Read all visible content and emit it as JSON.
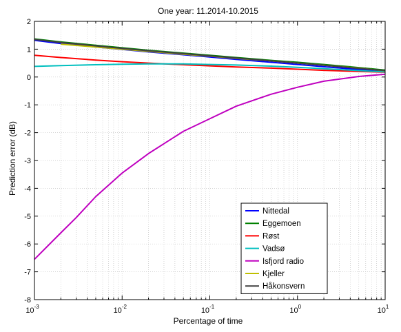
{
  "chart_data": {
    "type": "line",
    "title": "One year: 11.2014-10.2015",
    "xlabel": "Percentage of time",
    "ylabel": "Prediction error (dB)",
    "xscale": "log",
    "xlim": [
      0.001,
      10
    ],
    "ylim": [
      -8,
      2
    ],
    "grid": true,
    "legend_position": "bottom-right",
    "x_ticks": [
      {
        "value": 0.001,
        "base": "10",
        "exp": "-3"
      },
      {
        "value": 0.01,
        "base": "10",
        "exp": "-2"
      },
      {
        "value": 0.1,
        "base": "10",
        "exp": "-1"
      },
      {
        "value": 1,
        "base": "10",
        "exp": "0"
      },
      {
        "value": 10,
        "base": "10",
        "exp": "1"
      }
    ],
    "y_ticks": [
      -8,
      -7,
      -6,
      -5,
      -4,
      -3,
      -2,
      -1,
      0,
      1,
      2
    ],
    "series": [
      {
        "name": "Nittedal",
        "color": "#0000ff",
        "x": [
          0.001,
          0.002,
          0.005,
          0.01,
          0.02,
          0.05,
          0.1,
          0.2,
          0.5,
          1,
          2,
          5,
          10
        ],
        "y": [
          1.32,
          1.2,
          1.08,
          0.99,
          0.9,
          0.8,
          0.72,
          0.63,
          0.53,
          0.45,
          0.37,
          0.27,
          0.2
        ]
      },
      {
        "name": "Eggemoen",
        "color": "#008000",
        "x": [
          0.001,
          0.002,
          0.005,
          0.01,
          0.02,
          0.05,
          0.1,
          0.2,
          0.5,
          1,
          2,
          5,
          10
        ],
        "y": [
          1.37,
          1.26,
          1.14,
          1.05,
          0.96,
          0.86,
          0.78,
          0.7,
          0.6,
          0.53,
          0.45,
          0.34,
          0.25
        ]
      },
      {
        "name": "Røst",
        "color": "#ff0000",
        "x": [
          0.001,
          0.002,
          0.005,
          0.01,
          0.02,
          0.05,
          0.1,
          0.2,
          0.5,
          1,
          2,
          5,
          10
        ],
        "y": [
          0.78,
          0.7,
          0.61,
          0.55,
          0.5,
          0.44,
          0.4,
          0.36,
          0.32,
          0.28,
          0.24,
          0.2,
          0.17
        ]
      },
      {
        "name": "Vadsø",
        "color": "#00bfbf",
        "x": [
          0.001,
          0.002,
          0.005,
          0.01,
          0.02,
          0.05,
          0.1,
          0.2,
          0.5,
          1,
          2,
          5,
          10
        ],
        "y": [
          0.38,
          0.41,
          0.44,
          0.46,
          0.47,
          0.47,
          0.45,
          0.43,
          0.39,
          0.35,
          0.3,
          0.23,
          0.18
        ]
      },
      {
        "name": "Isfjord radio",
        "color": "#bf00bf",
        "x": [
          0.001,
          0.002,
          0.003,
          0.005,
          0.01,
          0.02,
          0.05,
          0.1,
          0.2,
          0.5,
          1,
          2,
          5,
          10
        ],
        "y": [
          -6.55,
          -5.6,
          -5.05,
          -4.3,
          -3.45,
          -2.75,
          -1.95,
          -1.5,
          -1.05,
          -0.62,
          -0.37,
          -0.15,
          0.02,
          0.1
        ]
      },
      {
        "name": "Kjeller",
        "color": "#bfbf00",
        "x": [
          0.002,
          0.005,
          0.01,
          0.02,
          0.05,
          0.1,
          0.2,
          0.5,
          1,
          2,
          5,
          10
        ],
        "y": [
          1.18,
          1.08,
          1.0,
          0.92,
          0.82,
          0.75,
          0.67,
          0.58,
          0.5,
          0.42,
          0.32,
          0.22
        ]
      },
      {
        "name": "Håkonsvern",
        "color": "#404040",
        "x": [
          0.001,
          0.002,
          0.005,
          0.01,
          0.02,
          0.05,
          0.1,
          0.2,
          0.5,
          1,
          2,
          5,
          10
        ],
        "y": [
          1.35,
          1.24,
          1.12,
          1.03,
          0.94,
          0.84,
          0.76,
          0.68,
          0.58,
          0.5,
          0.42,
          0.31,
          0.23
        ]
      }
    ]
  }
}
